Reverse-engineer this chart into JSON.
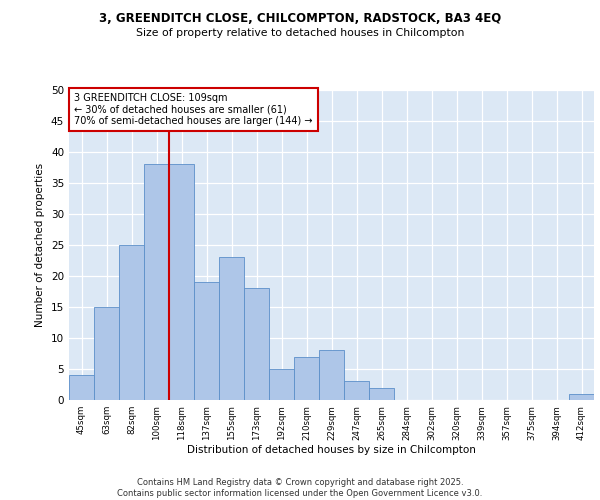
{
  "title1": "3, GREENDITCH CLOSE, CHILCOMPTON, RADSTOCK, BA3 4EQ",
  "title2": "Size of property relative to detached houses in Chilcompton",
  "xlabel": "Distribution of detached houses by size in Chilcompton",
  "ylabel": "Number of detached properties",
  "categories": [
    "45sqm",
    "63sqm",
    "82sqm",
    "100sqm",
    "118sqm",
    "137sqm",
    "155sqm",
    "173sqm",
    "192sqm",
    "210sqm",
    "229sqm",
    "247sqm",
    "265sqm",
    "284sqm",
    "302sqm",
    "320sqm",
    "339sqm",
    "357sqm",
    "375sqm",
    "394sqm",
    "412sqm"
  ],
  "values": [
    4,
    15,
    25,
    38,
    38,
    19,
    23,
    18,
    5,
    7,
    8,
    3,
    2,
    0,
    0,
    0,
    0,
    0,
    0,
    0,
    1
  ],
  "bar_color": "#aec6e8",
  "bar_edge_color": "#5b8fc9",
  "vline_x": 3.5,
  "vline_color": "#cc0000",
  "annotation_text": "3 GREENDITCH CLOSE: 109sqm\n← 30% of detached houses are smaller (61)\n70% of semi-detached houses are larger (144) →",
  "annotation_box_color": "#ffffff",
  "annotation_box_edge": "#cc0000",
  "ylim": [
    0,
    50
  ],
  "yticks": [
    0,
    5,
    10,
    15,
    20,
    25,
    30,
    35,
    40,
    45,
    50
  ],
  "background_color": "#dce8f5",
  "grid_color": "#ffffff",
  "fig_background": "#ffffff",
  "footer1": "Contains HM Land Registry data © Crown copyright and database right 2025.",
  "footer2": "Contains public sector information licensed under the Open Government Licence v3.0."
}
